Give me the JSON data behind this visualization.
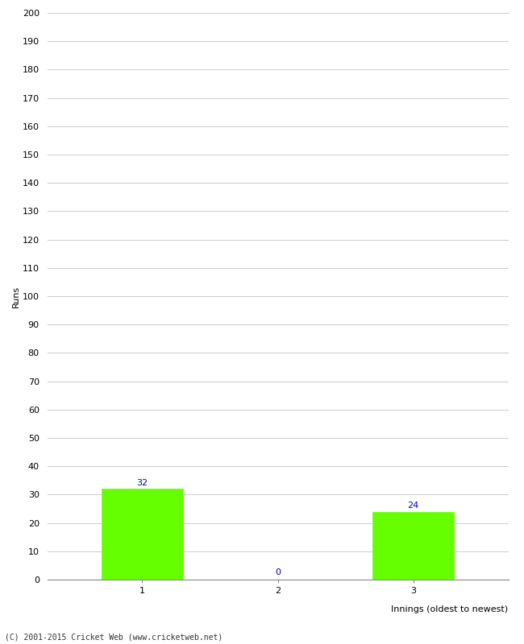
{
  "categories": [
    "1",
    "2",
    "3"
  ],
  "values": [
    32,
    0,
    24
  ],
  "bar_color": "#66ff00",
  "bar_edge_color": "#66ff00",
  "title": "",
  "ylabel": "Runs",
  "xlabel": "Innings (oldest to newest)",
  "ylim": [
    0,
    200
  ],
  "yticks": [
    0,
    10,
    20,
    30,
    40,
    50,
    60,
    70,
    80,
    90,
    100,
    110,
    120,
    130,
    140,
    150,
    160,
    170,
    180,
    190,
    200
  ],
  "label_color": "#0000cc",
  "label_fontsize": 8,
  "footer_text": "(C) 2001-2015 Cricket Web (www.cricketweb.net)",
  "bg_color": "#ffffff",
  "grid_color": "#cccccc",
  "bar_width": 0.6,
  "tick_fontsize": 8,
  "axis_label_fontsize": 8,
  "spine_color": "#888888"
}
